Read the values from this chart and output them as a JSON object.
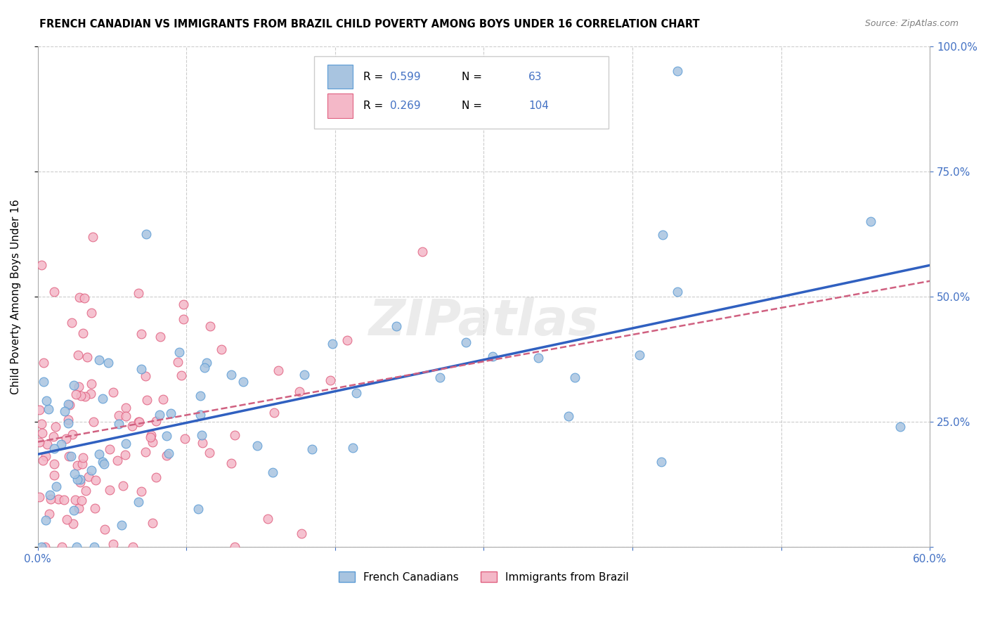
{
  "title": "FRENCH CANADIAN VS IMMIGRANTS FROM BRAZIL CHILD POVERTY AMONG BOYS UNDER 16 CORRELATION CHART",
  "source": "Source: ZipAtlas.com",
  "ylabel": "Child Poverty Among Boys Under 16",
  "xlim": [
    0.0,
    0.6
  ],
  "ylim": [
    0.0,
    1.0
  ],
  "xticks": [
    0.0,
    0.1,
    0.2,
    0.3,
    0.4,
    0.5,
    0.6
  ],
  "yticks": [
    0.0,
    0.25,
    0.5,
    0.75,
    1.0
  ],
  "fc_color": "#a8c4e0",
  "fc_edge_color": "#5b9bd5",
  "brazil_color": "#f4b8c8",
  "brazil_edge_color": "#e06080",
  "trend_fc_color": "#3060c0",
  "trend_brazil_color": "#d06080",
  "R_fc": 0.599,
  "N_fc": 63,
  "R_brazil": 0.269,
  "N_brazil": 104,
  "watermark": "ZIPatlas",
  "legend_label_fc": "French Canadians",
  "legend_label_brazil": "Immigrants from Brazil"
}
